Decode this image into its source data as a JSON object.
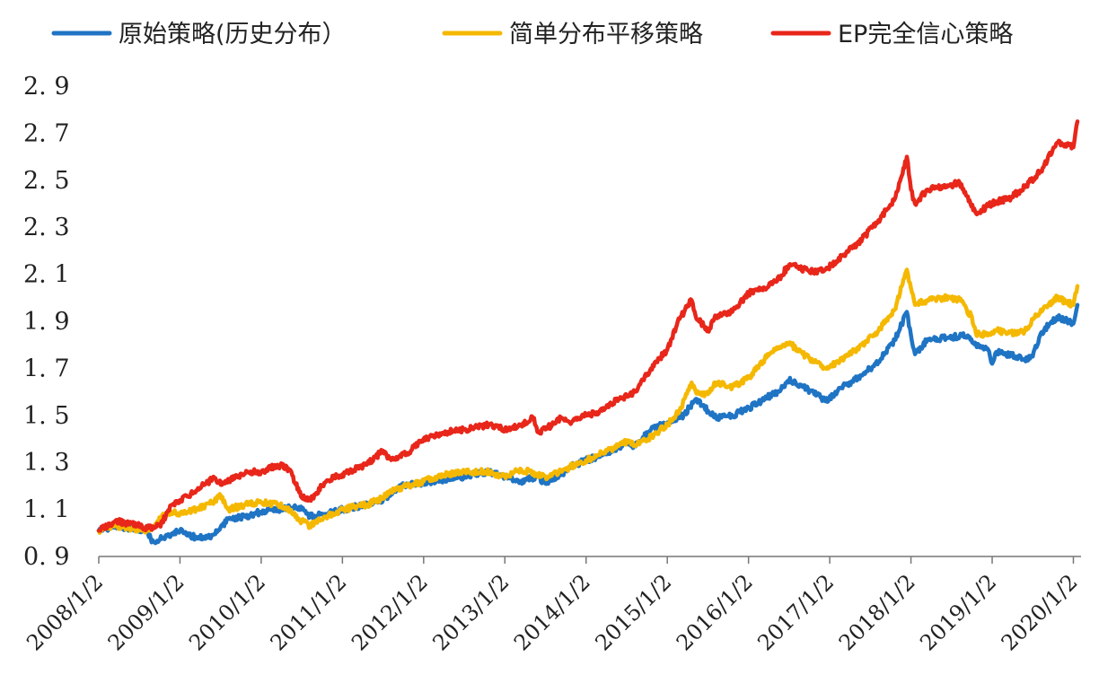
{
  "chart_data": {
    "type": "line",
    "title": "",
    "xlabel": "",
    "ylabel": "",
    "ylim": [
      0.9,
      2.9
    ],
    "yticks": [
      0.9,
      1.1,
      1.3,
      1.5,
      1.7,
      1.9,
      2.1,
      2.3,
      2.5,
      2.7,
      2.9
    ],
    "ytick_labels": [
      "0. 9",
      "1. 1",
      "1. 3",
      "1. 5",
      "1. 7",
      "1. 9",
      "2. 1",
      "2. 3",
      "2. 5",
      "2. 7",
      "2. 9"
    ],
    "xlim": [
      2008.0,
      2020.05
    ],
    "xticks": [
      2008,
      2009,
      2010,
      2011,
      2012,
      2013,
      2014,
      2015,
      2016,
      2017,
      2018,
      2019,
      2020
    ],
    "xtick_labels": [
      "2008/1/2",
      "2009/1/2",
      "2010/1/2",
      "2011/1/2",
      "2012/1/2",
      "2013/1/2",
      "2014/1/2",
      "2015/1/2",
      "2016/1/2",
      "2017/1/2",
      "2018/1/2",
      "2019/1/2",
      "2020/1/2"
    ],
    "grid": false,
    "legend_position": "top",
    "series": [
      {
        "name": "原始策略(历史分布）",
        "color": "#1f74c4",
        "x": [
          2008.0,
          2008.2,
          2008.4,
          2008.6,
          2008.65,
          2008.8,
          2009.0,
          2009.2,
          2009.4,
          2009.6,
          2009.8,
          2010.0,
          2010.2,
          2010.35,
          2010.5,
          2010.6,
          2010.8,
          2011.0,
          2011.3,
          2011.5,
          2011.6,
          2011.8,
          2012.0,
          2012.3,
          2012.5,
          2012.8,
          2013.0,
          2013.2,
          2013.4,
          2013.5,
          2013.7,
          2013.8,
          2014.0,
          2014.2,
          2014.4,
          2014.5,
          2014.6,
          2014.8,
          2015.0,
          2015.2,
          2015.35,
          2015.5,
          2015.6,
          2015.8,
          2016.0,
          2016.2,
          2016.4,
          2016.5,
          2016.6,
          2016.8,
          2016.95,
          2017.2,
          2017.4,
          2017.6,
          2017.8,
          2017.95,
          2018.0,
          2018.05,
          2018.2,
          2018.4,
          2018.7,
          2018.8,
          2018.95,
          2019.0,
          2019.05,
          2019.15,
          2019.3,
          2019.4,
          2019.5,
          2019.6,
          2019.8,
          2020.0,
          2020.05
        ],
        "values": [
          1.01,
          1.03,
          1.02,
          1.01,
          0.96,
          0.98,
          1.01,
          0.98,
          0.99,
          1.06,
          1.07,
          1.09,
          1.1,
          1.11,
          1.1,
          1.07,
          1.08,
          1.1,
          1.12,
          1.14,
          1.17,
          1.21,
          1.21,
          1.23,
          1.24,
          1.26,
          1.24,
          1.22,
          1.24,
          1.21,
          1.25,
          1.28,
          1.31,
          1.33,
          1.36,
          1.38,
          1.37,
          1.44,
          1.47,
          1.5,
          1.57,
          1.52,
          1.49,
          1.5,
          1.53,
          1.57,
          1.61,
          1.65,
          1.63,
          1.6,
          1.56,
          1.63,
          1.67,
          1.73,
          1.82,
          1.94,
          1.84,
          1.76,
          1.82,
          1.83,
          1.84,
          1.8,
          1.78,
          1.72,
          1.77,
          1.76,
          1.75,
          1.74,
          1.75,
          1.85,
          1.92,
          1.89,
          1.97
        ]
      },
      {
        "name": "简单分布平移策略",
        "color": "#f5b800",
        "x": [
          2008.0,
          2008.2,
          2008.4,
          2008.6,
          2008.7,
          2008.85,
          2009.0,
          2009.2,
          2009.4,
          2009.5,
          2009.6,
          2009.8,
          2010.0,
          2010.2,
          2010.3,
          2010.5,
          2010.6,
          2010.8,
          2011.0,
          2011.3,
          2011.5,
          2011.6,
          2011.8,
          2012.0,
          2012.3,
          2012.5,
          2012.8,
          2013.0,
          2013.2,
          2013.4,
          2013.5,
          2013.7,
          2013.8,
          2014.0,
          2014.2,
          2014.4,
          2014.5,
          2014.6,
          2014.8,
          2015.0,
          2015.15,
          2015.3,
          2015.35,
          2015.5,
          2015.6,
          2015.8,
          2016.0,
          2016.2,
          2016.35,
          2016.5,
          2016.6,
          2016.8,
          2016.95,
          2017.2,
          2017.4,
          2017.6,
          2017.8,
          2017.95,
          2018.0,
          2018.05,
          2018.2,
          2018.4,
          2018.6,
          2018.75,
          2018.8,
          2018.95,
          2019.05,
          2019.2,
          2019.4,
          2019.6,
          2019.8,
          2020.0,
          2020.05
        ],
        "values": [
          1.01,
          1.03,
          1.02,
          1.01,
          1.04,
          1.09,
          1.08,
          1.1,
          1.13,
          1.16,
          1.1,
          1.12,
          1.13,
          1.12,
          1.11,
          1.05,
          1.03,
          1.07,
          1.1,
          1.12,
          1.15,
          1.18,
          1.2,
          1.22,
          1.25,
          1.26,
          1.26,
          1.24,
          1.27,
          1.25,
          1.24,
          1.26,
          1.28,
          1.31,
          1.34,
          1.37,
          1.39,
          1.37,
          1.41,
          1.46,
          1.52,
          1.64,
          1.6,
          1.59,
          1.64,
          1.62,
          1.66,
          1.74,
          1.79,
          1.81,
          1.78,
          1.73,
          1.7,
          1.75,
          1.8,
          1.86,
          1.95,
          2.12,
          2.04,
          1.97,
          1.99,
          2.0,
          1.99,
          1.92,
          1.85,
          1.84,
          1.86,
          1.85,
          1.86,
          1.95,
          2.0,
          1.97,
          2.05
        ]
      },
      {
        "name": "EP完全信心策略",
        "color": "#e8261a",
        "x": [
          2008.0,
          2008.2,
          2008.4,
          2008.6,
          2008.75,
          2008.9,
          2009.0,
          2009.2,
          2009.4,
          2009.55,
          2009.7,
          2009.85,
          2010.0,
          2010.2,
          2010.35,
          2010.5,
          2010.6,
          2010.8,
          2011.0,
          2011.3,
          2011.5,
          2011.6,
          2011.8,
          2012.0,
          2012.3,
          2012.5,
          2012.8,
          2013.0,
          2013.2,
          2013.35,
          2013.4,
          2013.5,
          2013.7,
          2013.8,
          2014.0,
          2014.2,
          2014.4,
          2014.5,
          2014.6,
          2014.8,
          2015.0,
          2015.15,
          2015.3,
          2015.35,
          2015.5,
          2015.6,
          2015.8,
          2016.0,
          2016.2,
          2016.35,
          2016.5,
          2016.6,
          2016.8,
          2016.95,
          2017.2,
          2017.4,
          2017.6,
          2017.8,
          2017.95,
          2018.0,
          2018.05,
          2018.2,
          2018.4,
          2018.6,
          2018.8,
          2018.95,
          2019.05,
          2019.2,
          2019.4,
          2019.6,
          2019.8,
          2020.0,
          2020.05
        ],
        "values": [
          1.01,
          1.05,
          1.04,
          1.02,
          1.03,
          1.12,
          1.14,
          1.18,
          1.23,
          1.21,
          1.24,
          1.26,
          1.26,
          1.29,
          1.27,
          1.15,
          1.14,
          1.22,
          1.25,
          1.29,
          1.35,
          1.31,
          1.34,
          1.4,
          1.43,
          1.44,
          1.46,
          1.44,
          1.46,
          1.49,
          1.43,
          1.44,
          1.49,
          1.47,
          1.5,
          1.52,
          1.57,
          1.58,
          1.6,
          1.7,
          1.78,
          1.91,
          1.99,
          1.92,
          1.86,
          1.92,
          1.94,
          2.02,
          2.04,
          2.07,
          2.14,
          2.13,
          2.11,
          2.12,
          2.19,
          2.25,
          2.33,
          2.42,
          2.6,
          2.46,
          2.4,
          2.46,
          2.47,
          2.49,
          2.36,
          2.39,
          2.41,
          2.42,
          2.47,
          2.54,
          2.66,
          2.64,
          2.75
        ]
      }
    ]
  }
}
